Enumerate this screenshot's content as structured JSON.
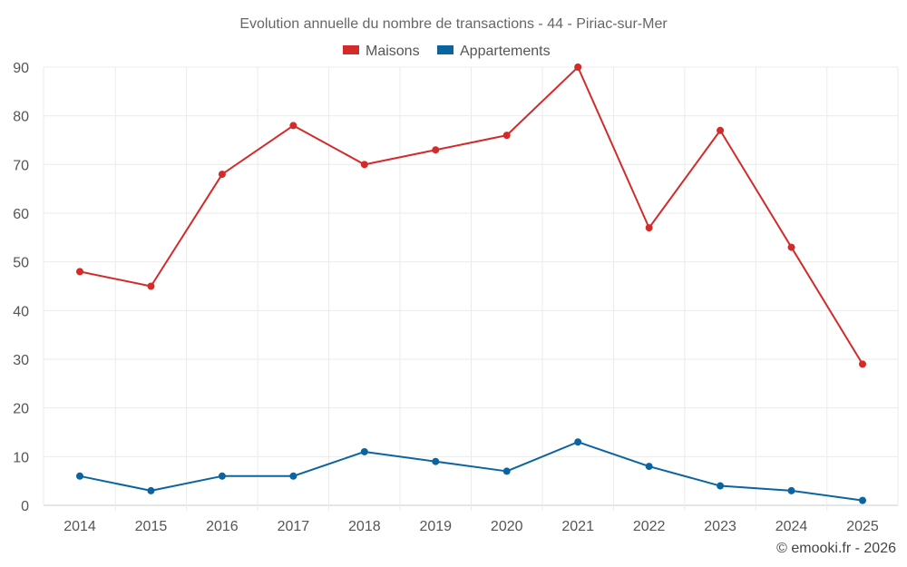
{
  "chart_data": {
    "type": "line",
    "title": "Evolution annuelle du nombre de transactions - 44 - Piriac-sur-Mer",
    "categories": [
      "2014",
      "2015",
      "2016",
      "2017",
      "2018",
      "2019",
      "2020",
      "2021",
      "2022",
      "2023",
      "2024",
      "2025"
    ],
    "series": [
      {
        "name": "Maisons",
        "color": "#d42a2a",
        "values": [
          48,
          45,
          68,
          78,
          70,
          73,
          76,
          90,
          57,
          77,
          53,
          29
        ]
      },
      {
        "name": "Appartements",
        "color": "#0b64a0",
        "values": [
          6,
          3,
          6,
          6,
          11,
          9,
          7,
          13,
          8,
          4,
          3,
          1
        ]
      }
    ],
    "ylim": [
      0,
      90
    ],
    "yticks": [
      0,
      10,
      20,
      30,
      40,
      50,
      60,
      70,
      80,
      90
    ],
    "grid": true,
    "legend": "top-center",
    "xlabel": "",
    "ylabel": ""
  },
  "credit": "© emooki.fr - 2026"
}
